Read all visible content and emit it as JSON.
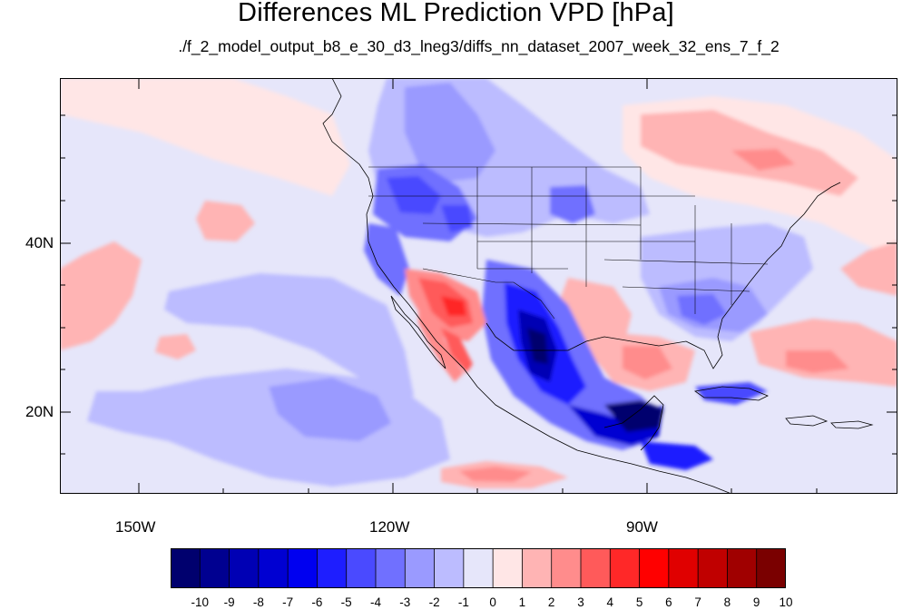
{
  "title": "Differences ML Prediction VPD [hPa]",
  "subtitle": "./f_2_model_output_b8_e_30_d3_lneg3/diffs_nn_dataset_2007_week_32_ens_7_f_2",
  "axes": {
    "lon_ticks": [
      "150W",
      "120W",
      "90W"
    ],
    "lat_ticks": [
      "40N",
      "20N"
    ],
    "lon_range": [
      -159.3,
      -60
    ],
    "lat_range": [
      10.5,
      59.5
    ]
  },
  "colorbar": {
    "labels": [
      "-10",
      "-9",
      "-8",
      "-7",
      "-6",
      "-5",
      "-4",
      "-3",
      "-2",
      "-1",
      "0",
      "1",
      "2",
      "3",
      "4",
      "5",
      "6",
      "7",
      "8",
      "9",
      "10"
    ],
    "colors": [
      "#00006e",
      "#000090",
      "#0000b4",
      "#0000d2",
      "#0000f0",
      "#1e1eff",
      "#4a4aff",
      "#7070ff",
      "#9a9aff",
      "#bcbcff",
      "#e6e6fa",
      "#ffe6e6",
      "#ffb4b4",
      "#ff8c8c",
      "#ff5a5a",
      "#ff2828",
      "#ff0000",
      "#e00000",
      "#c00000",
      "#a00000",
      "#7a0000"
    ]
  }
}
